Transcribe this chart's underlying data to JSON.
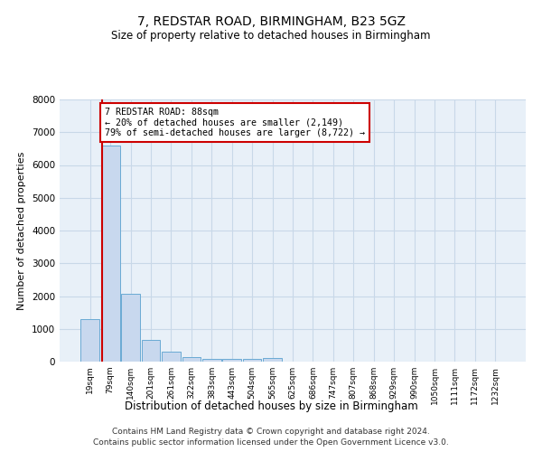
{
  "title": "7, REDSTAR ROAD, BIRMINGHAM, B23 5GZ",
  "subtitle": "Size of property relative to detached houses in Birmingham",
  "xlabel": "Distribution of detached houses by size in Birmingham",
  "ylabel": "Number of detached properties",
  "bar_labels": [
    "19sqm",
    "79sqm",
    "140sqm",
    "201sqm",
    "261sqm",
    "322sqm",
    "383sqm",
    "443sqm",
    "504sqm",
    "565sqm",
    "625sqm",
    "686sqm",
    "747sqm",
    "807sqm",
    "868sqm",
    "929sqm",
    "990sqm",
    "1050sqm",
    "1111sqm",
    "1172sqm",
    "1232sqm"
  ],
  "bar_values": [
    1300,
    6600,
    2080,
    650,
    290,
    145,
    90,
    80,
    75,
    110,
    0,
    0,
    0,
    0,
    0,
    0,
    0,
    0,
    0,
    0,
    0
  ],
  "bar_color": "#c8d8ee",
  "bar_edge_color": "#6aaad4",
  "vline_x_index": 0.57,
  "annotation_text": "7 REDSTAR ROAD: 88sqm\n← 20% of detached houses are smaller (2,149)\n79% of semi-detached houses are larger (8,722) →",
  "annotation_box_color": "#ffffff",
  "annotation_box_edge": "#cc0000",
  "vline_color": "#cc0000",
  "ylim": [
    0,
    8000
  ],
  "yticks": [
    0,
    1000,
    2000,
    3000,
    4000,
    5000,
    6000,
    7000,
    8000
  ],
  "grid_color": "#c8d8e8",
  "background_color": "#e8f0f8",
  "footer_line1": "Contains HM Land Registry data © Crown copyright and database right 2024.",
  "footer_line2": "Contains public sector information licensed under the Open Government Licence v3.0."
}
